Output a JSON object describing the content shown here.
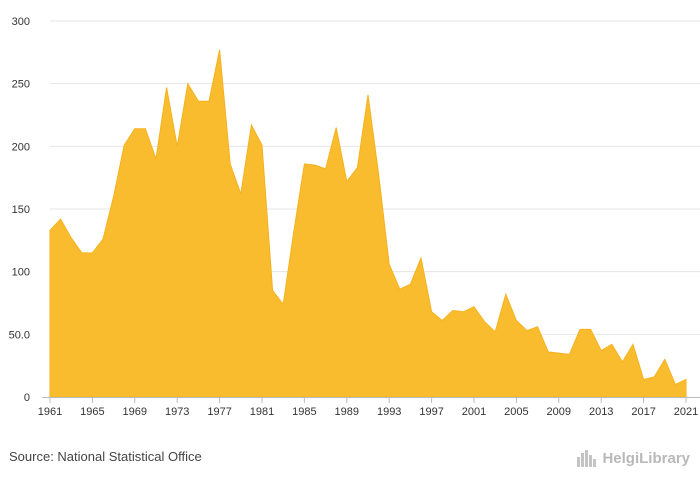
{
  "source_text": "Source: National Statistical Office",
  "brand_text": "HelgiLibrary",
  "colors": {
    "area": "#F9BC2E",
    "grid": "#e4e4e4",
    "axis": "#bbbbbb",
    "text": "#333333"
  },
  "chart_data": {
    "type": "area",
    "title": "",
    "xlabel": "",
    "ylabel": "",
    "xlim": [
      1961,
      2021
    ],
    "ylim": [
      0,
      300
    ],
    "grid": true,
    "yticks": [
      {
        "value": 0,
        "label": "0"
      },
      {
        "value": 50,
        "label": "50.0"
      },
      {
        "value": 100,
        "label": "100"
      },
      {
        "value": 150,
        "label": "150"
      },
      {
        "value": 200,
        "label": "200"
      },
      {
        "value": 250,
        "label": "250"
      },
      {
        "value": 300,
        "label": "300"
      }
    ],
    "xticks": [
      1961,
      1965,
      1969,
      1973,
      1977,
      1981,
      1985,
      1989,
      1993,
      1997,
      2001,
      2005,
      2009,
      2013,
      2017,
      2021
    ],
    "x": [
      1961,
      1962,
      1963,
      1964,
      1965,
      1966,
      1967,
      1968,
      1969,
      1970,
      1971,
      1972,
      1973,
      1974,
      1975,
      1976,
      1977,
      1978,
      1979,
      1980,
      1981,
      1982,
      1983,
      1984,
      1985,
      1986,
      1987,
      1988,
      1989,
      1990,
      1991,
      1992,
      1993,
      1994,
      1995,
      1996,
      1997,
      1998,
      1999,
      2000,
      2001,
      2002,
      2003,
      2004,
      2005,
      2006,
      2007,
      2008,
      2009,
      2010,
      2011,
      2012,
      2013,
      2014,
      2015,
      2016,
      2017,
      2018,
      2019,
      2020,
      2021
    ],
    "series": [
      {
        "values": [
          133,
          142,
          127,
          115,
          115,
          126,
          160,
          201,
          214,
          214,
          190,
          247,
          200,
          250,
          236,
          236,
          277,
          186,
          162,
          217,
          201,
          85,
          74,
          132,
          186,
          185,
          182,
          215,
          172,
          183,
          241,
          178,
          106,
          86,
          90,
          111,
          68,
          61,
          69,
          68,
          72,
          60,
          52,
          82,
          61,
          53,
          56,
          36,
          35,
          34,
          54,
          54,
          37,
          42,
          28,
          42,
          14,
          16,
          30,
          10,
          14
        ]
      }
    ]
  }
}
